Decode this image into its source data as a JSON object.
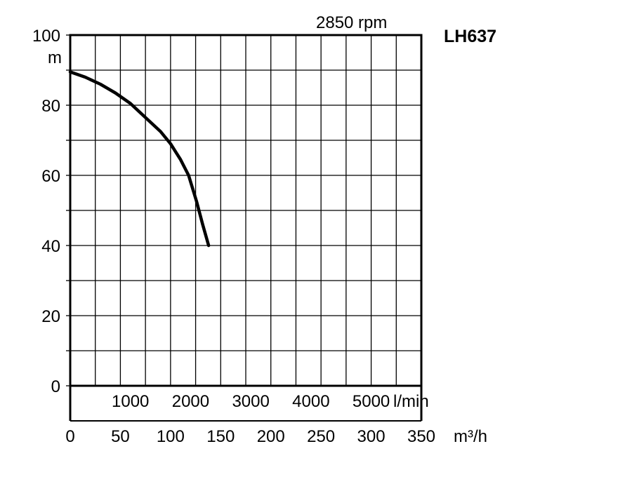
{
  "chart_data": {
    "type": "line",
    "title": "LH637",
    "subtitle": "2850 rpm",
    "ylabel": "m",
    "xlabel": "m³/h",
    "x2label": "l/min",
    "ylim": [
      0,
      100
    ],
    "xlim": [
      0,
      350
    ],
    "yticks": [
      "0",
      "20",
      "40",
      "60",
      "80",
      "100"
    ],
    "xticks": [
      "0",
      "50",
      "100",
      "150",
      "200",
      "250",
      "300",
      "350"
    ],
    "x2ticks": [
      "1000",
      "2000",
      "3000",
      "4000",
      "5000"
    ],
    "grid": true,
    "series": [
      {
        "x": [
          0,
          15,
          30,
          45,
          60,
          75,
          90,
          100,
          110,
          118,
          126,
          132,
          138
        ],
        "y": [
          89.5,
          88,
          86,
          83.5,
          80.5,
          76.5,
          72.5,
          69,
          64.5,
          60,
          52.5,
          46,
          40
        ],
        "color": "#000000"
      }
    ]
  }
}
